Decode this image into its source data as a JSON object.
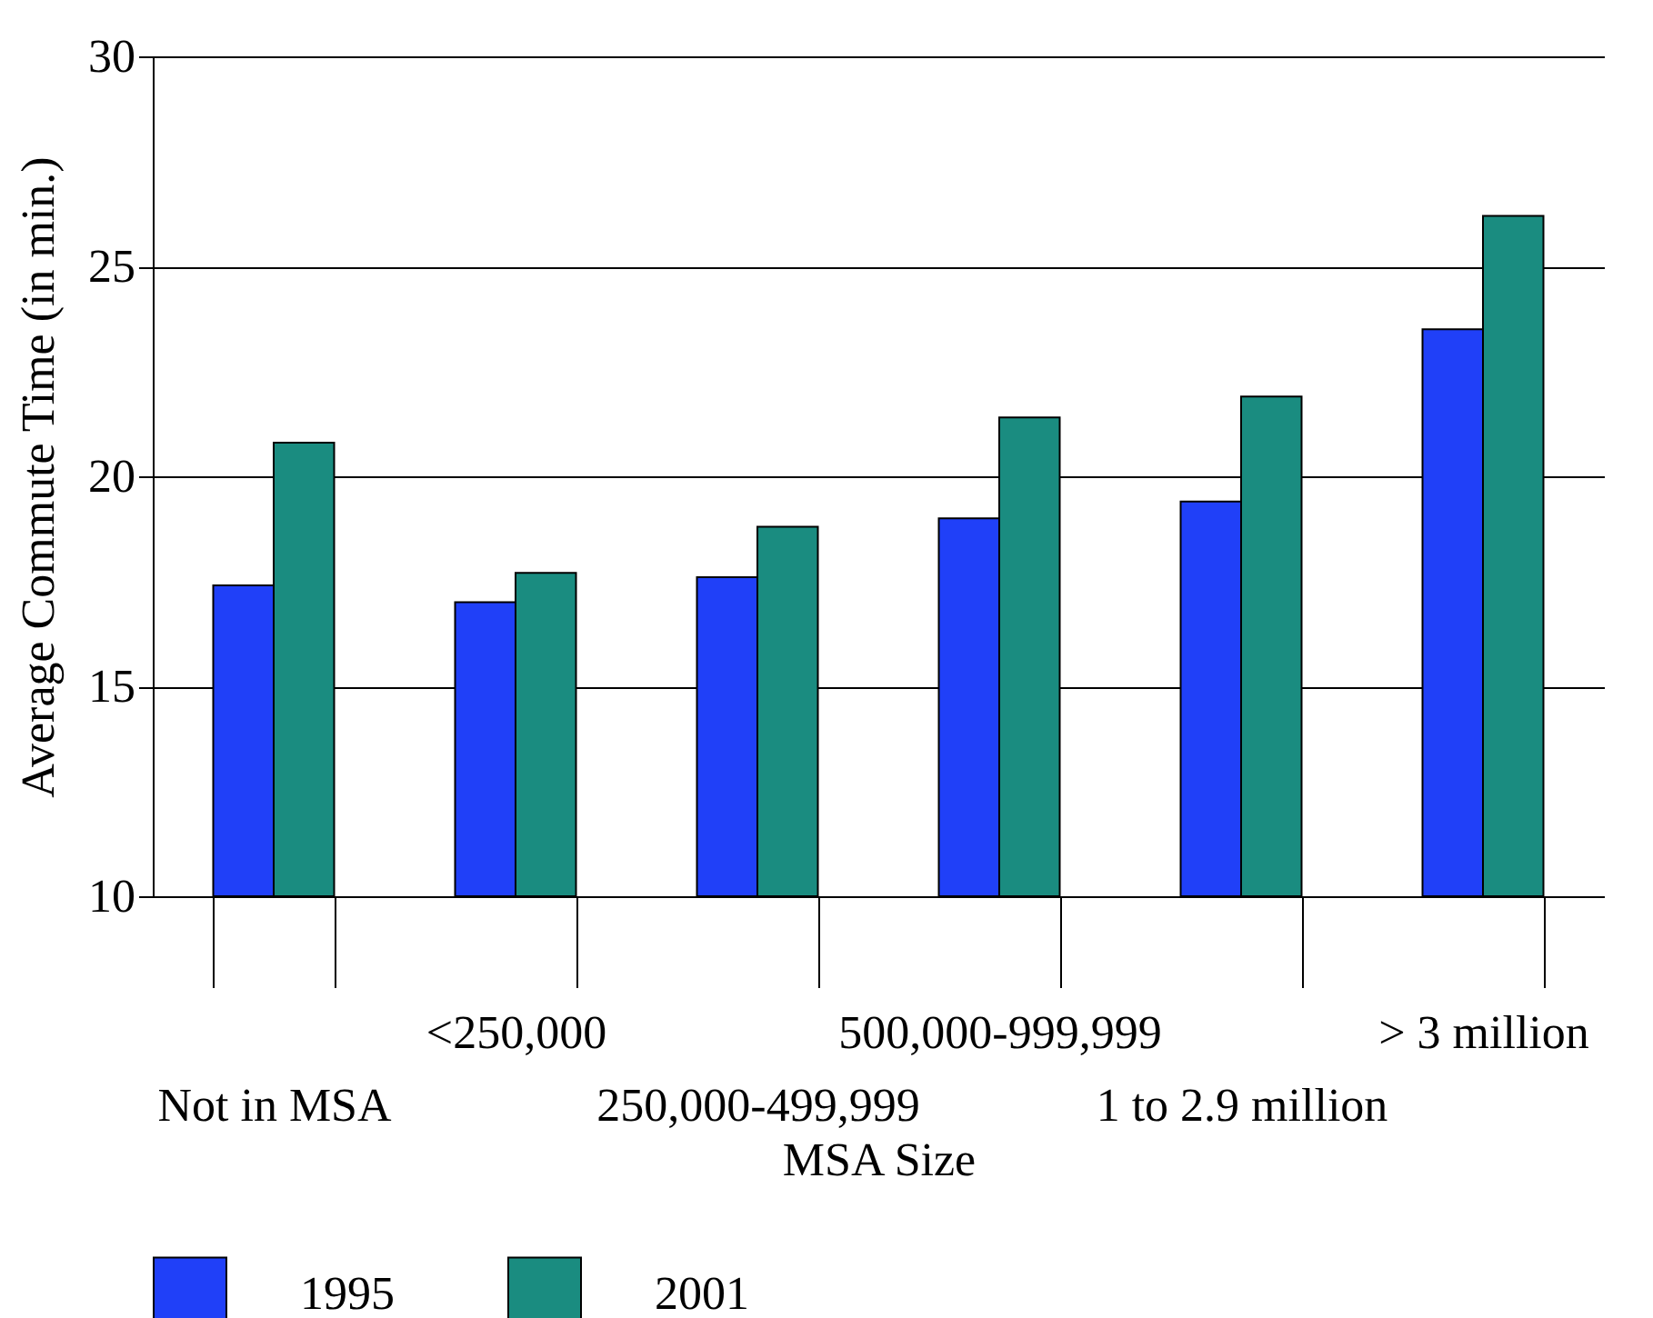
{
  "chart_data": {
    "type": "bar",
    "xlabel": "MSA Size",
    "ylabel": "Average Commute Time (in min.)",
    "categories": [
      "Not in MSA",
      "<250,000",
      "250,000-499,999",
      "500,000-999,999",
      "1 to 2.9 million",
      "> 3 million"
    ],
    "series": [
      {
        "name": "1995",
        "color": "#2040f8",
        "values": [
          17.4,
          17.0,
          17.6,
          19.0,
          19.4,
          23.5
        ]
      },
      {
        "name": "2001",
        "color": "#1a8c80",
        "values": [
          20.8,
          17.7,
          18.8,
          21.4,
          21.9,
          26.2
        ]
      }
    ],
    "ylim": [
      10,
      30
    ],
    "yticks": [
      10,
      15,
      20,
      25,
      30
    ],
    "grid": "y",
    "legend": "bottom"
  }
}
